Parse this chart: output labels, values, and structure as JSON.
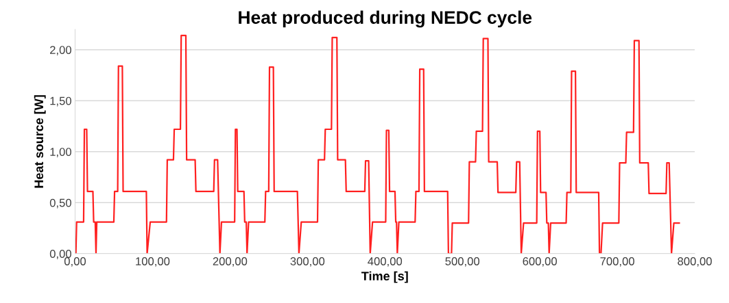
{
  "chart_data": {
    "type": "line",
    "title": "Heat produced during NEDC cycle",
    "xlabel": "Time [s]",
    "ylabel": "Heat source [W]",
    "xlim": [
      0,
      800
    ],
    "ylim": [
      0,
      2.2
    ],
    "xticks": [
      {
        "value": 0,
        "label": "0,00"
      },
      {
        "value": 100,
        "label": "100,00"
      },
      {
        "value": 200,
        "label": "200,00"
      },
      {
        "value": 300,
        "label": "300,00"
      },
      {
        "value": 400,
        "label": "400,00"
      },
      {
        "value": 500,
        "label": "500,00"
      },
      {
        "value": 600,
        "label": "600,00"
      },
      {
        "value": 700,
        "label": "700,00"
      },
      {
        "value": 800,
        "label": "800,00"
      }
    ],
    "yticks": [
      {
        "value": 0,
        "label": "0,00"
      },
      {
        "value": 0.5,
        "label": "0,50"
      },
      {
        "value": 1,
        "label": "1,00"
      },
      {
        "value": 1.5,
        "label": "1,50"
      },
      {
        "value": 2,
        "label": "2,00"
      }
    ],
    "grid": "y",
    "legend": false,
    "marker": "none",
    "line_style": "solid",
    "series": [
      {
        "color": "#ff2020",
        "x": [
          1,
          2,
          11,
          12,
          15,
          16,
          23,
          24,
          26,
          27,
          28,
          50,
          51,
          55,
          56,
          61,
          62,
          92,
          93,
          97,
          118,
          119,
          127,
          128,
          136,
          137,
          143,
          144,
          155,
          156,
          179,
          180,
          184,
          187,
          189,
          206,
          207,
          209,
          210,
          218,
          219,
          221,
          222,
          224,
          245,
          246,
          250,
          251,
          256,
          257,
          287,
          289,
          292,
          313,
          314,
          322,
          323,
          331,
          332,
          338,
          339,
          349,
          350,
          374,
          375,
          379,
          381,
          384,
          401,
          402,
          405,
          406,
          413,
          414,
          415,
          416,
          418,
          439,
          440,
          444,
          445,
          450,
          451,
          481,
          482,
          486,
          487,
          508,
          509,
          517,
          518,
          526,
          527,
          533,
          534,
          545,
          546,
          569,
          570,
          574,
          576,
          579,
          596,
          597,
          600,
          601,
          608,
          609,
          611,
          612,
          614,
          634,
          635,
          640,
          641,
          646,
          647,
          676,
          677,
          679,
          681,
          702,
          703,
          711,
          712,
          721,
          722,
          728,
          729,
          740,
          741,
          763,
          764,
          767,
          770,
          773,
          780
        ],
        "values": [
          0,
          0.31,
          0.31,
          1.22,
          1.22,
          0.61,
          0.61,
          0.31,
          0.31,
          0,
          0.31,
          0.31,
          0.61,
          0.61,
          1.84,
          1.84,
          0.61,
          0.61,
          0,
          0.31,
          0.31,
          0.92,
          0.92,
          1.22,
          1.22,
          2.14,
          2.14,
          0.92,
          0.92,
          0.61,
          0.61,
          0.92,
          0.92,
          0,
          0.31,
          0.31,
          1.22,
          1.22,
          0.61,
          0.61,
          0.31,
          0.31,
          0,
          0.31,
          0.31,
          0.61,
          0.61,
          1.83,
          1.83,
          0.61,
          0.61,
          0,
          0.31,
          0.31,
          0.92,
          0.92,
          1.22,
          1.22,
          2.12,
          2.12,
          0.92,
          0.92,
          0.61,
          0.61,
          0.91,
          0.91,
          0,
          0.31,
          0.31,
          1.21,
          1.21,
          0.61,
          0.61,
          0.31,
          0.31,
          0,
          0.31,
          0.31,
          0.61,
          0.61,
          1.81,
          1.81,
          0.61,
          0.61,
          0,
          0,
          0.3,
          0.3,
          0.9,
          0.9,
          1.2,
          1.2,
          2.11,
          2.11,
          0.9,
          0.9,
          0.6,
          0.6,
          0.9,
          0.9,
          0,
          0.3,
          0.3,
          1.2,
          1.2,
          0.6,
          0.6,
          0.3,
          0.3,
          0,
          0.3,
          0.3,
          0.6,
          0.6,
          1.79,
          1.79,
          0.6,
          0.6,
          0,
          0,
          0.3,
          0.3,
          0.89,
          0.89,
          1.19,
          1.19,
          2.09,
          2.09,
          0.89,
          0.89,
          0.59,
          0.59,
          0.89,
          0.89,
          0,
          0.3,
          0.3
        ]
      }
    ]
  }
}
